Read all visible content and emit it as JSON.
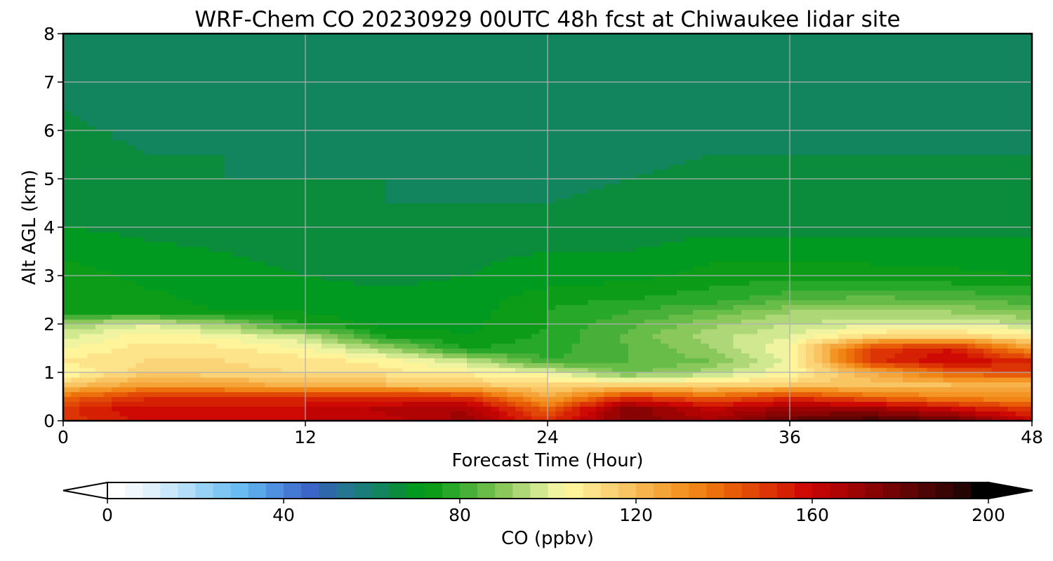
{
  "chart_data": {
    "type": "heatmap",
    "title": "WRF-Chem CO  20230929 00UTC 48h fcst at Chiwaukee lidar site",
    "xlabel": "Forecast Time (Hour)",
    "ylabel": "Alt AGL (km)",
    "xlim": [
      0,
      48
    ],
    "ylim": [
      0,
      8
    ],
    "xticks": [
      "0",
      "12",
      "24",
      "36",
      "48"
    ],
    "yticks": [
      "0",
      "1",
      "2",
      "3",
      "4",
      "5",
      "6",
      "7",
      "8"
    ],
    "grid": true,
    "colorbar": {
      "label": "CO  (ppbv)",
      "range": [
        0,
        200
      ],
      "ticks": [
        "0",
        "40",
        "80",
        "120",
        "160",
        "200"
      ],
      "extend": "both",
      "orientation": "horizontal",
      "placement": "bottom",
      "colors": [
        "#ffffff",
        "#f0f8fd",
        "#e0f1fc",
        "#cbe8fb",
        "#b3ddf8",
        "#98d1f6",
        "#7fc6f5",
        "#68bcf2",
        "#5aa8ea",
        "#4f90e0",
        "#4479d4",
        "#3b66c8",
        "#2f68a8",
        "#247693",
        "#1a7d7a",
        "#12845e",
        "#0a8c3c",
        "#009a20",
        "#0c9c18",
        "#28a828",
        "#48b038",
        "#68bc48",
        "#8ac85c",
        "#aed878",
        "#d0e890",
        "#f0f4a0",
        "#fff49a",
        "#fde48a",
        "#fbd478",
        "#f9c462",
        "#f7b44c",
        "#f5a438",
        "#f39424",
        "#f08414",
        "#ec700c",
        "#e85c08",
        "#e24806",
        "#dc3404",
        "#d62004",
        "#cf0a04",
        "#c00404",
        "#b00404",
        "#9c0404",
        "#880404",
        "#740404",
        "#600404",
        "#4c0404",
        "#380404",
        "#240404",
        "#000000"
      ]
    },
    "profiles": {
      "altitudes_km": [
        0.0,
        0.25,
        0.5,
        0.75,
        1.0,
        1.25,
        1.5,
        1.75,
        2.0,
        2.25,
        2.5,
        2.75,
        3.0,
        3.5,
        4.0,
        4.5,
        5.0,
        5.5,
        6.0,
        6.5,
        7.0,
        7.5,
        8.0
      ],
      "hours": [
        0,
        4,
        8,
        12,
        16,
        20,
        24,
        28,
        32,
        36,
        40,
        44,
        48
      ],
      "co_ppbv": [
        [
          150,
          150,
          140,
          116,
          104,
          108,
          104,
          98,
          92,
          76,
          76,
          75,
          74,
          71,
          68,
          67,
          66,
          66,
          65,
          64,
          62,
          63,
          62
        ],
        [
          157,
          160,
          150,
          128,
          114,
          112,
          110,
          106,
          100,
          75,
          74,
          72,
          71,
          69,
          67,
          66,
          65,
          64,
          63,
          61,
          61,
          61,
          62
        ],
        [
          158,
          158,
          151,
          126,
          113,
          112,
          109,
          103,
          92,
          72,
          70,
          70,
          69,
          68,
          66,
          65,
          64,
          64,
          63,
          62,
          61,
          62,
          63
        ],
        [
          160,
          160,
          150,
          122,
          112,
          110,
          104,
          96,
          76,
          72,
          70,
          69,
          68,
          67,
          66,
          65,
          64,
          63,
          63,
          62,
          62,
          63,
          64
        ],
        [
          162,
          165,
          152,
          120,
          110,
          106,
          92,
          76,
          70,
          69,
          68,
          68,
          67,
          66,
          65,
          64,
          64,
          63,
          63,
          63,
          62,
          63,
          64
        ],
        [
          170,
          168,
          150,
          118,
          106,
          96,
          76,
          72,
          71,
          70,
          70,
          69,
          68,
          67,
          65,
          64,
          63,
          63,
          62,
          61,
          61,
          61,
          63
        ],
        [
          150,
          140,
          124,
          112,
          102,
          80,
          78,
          77,
          76,
          76,
          75,
          72,
          70,
          68,
          66,
          64,
          63,
          62,
          61,
          60,
          60,
          60,
          60
        ],
        [
          176,
          176,
          150,
          112,
          86,
          84,
          84,
          85,
          83,
          80,
          76,
          74,
          70,
          68,
          66,
          65,
          64,
          63,
          62,
          61,
          60,
          60,
          61
        ],
        [
          168,
          162,
          140,
          112,
          94,
          88,
          92,
          94,
          91,
          85,
          78,
          76,
          74,
          70,
          67,
          66,
          65,
          64,
          63,
          62,
          62,
          61,
          62
        ],
        [
          182,
          170,
          150,
          116,
          104,
          102,
          104,
          100,
          96,
          92,
          84,
          78,
          75,
          70,
          67,
          66,
          65,
          64,
          63,
          62,
          62,
          62,
          62
        ],
        [
          188,
          170,
          140,
          118,
          124,
          150,
          148,
          114,
          98,
          94,
          86,
          79,
          74,
          70,
          67,
          66,
          65,
          64,
          63,
          62,
          61,
          61,
          62
        ],
        [
          182,
          160,
          132,
          120,
          142,
          160,
          156,
          116,
          100,
          92,
          84,
          78,
          73,
          70,
          67,
          66,
          65,
          64,
          63,
          62,
          61,
          61,
          62
        ],
        [
          160,
          148,
          130,
          120,
          150,
          152,
          128,
          108,
          96,
          88,
          82,
          77,
          72,
          69,
          67,
          66,
          65,
          64,
          63,
          62,
          61,
          61,
          62
        ]
      ]
    }
  }
}
